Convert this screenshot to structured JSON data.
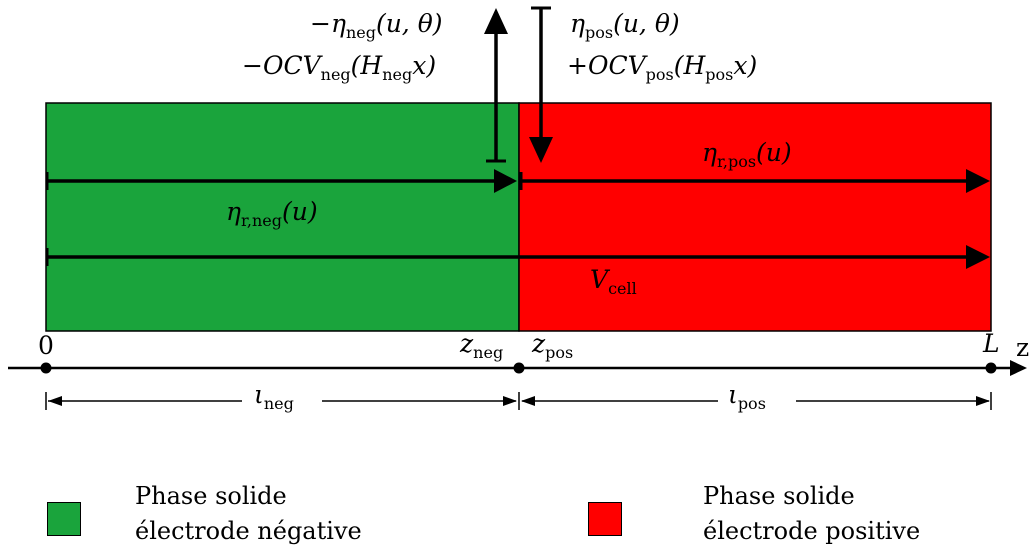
{
  "colors": {
    "negative": "#1aa43c",
    "positive": "#ff0000",
    "stroke": "#000000"
  },
  "labels": {
    "eta_neg_line1": "−η",
    "eta_neg_line1_sub": "neg",
    "eta_neg_line1_args": "(u, θ)",
    "ocv_neg": "−OCV",
    "ocv_neg_sub": "neg",
    "ocv_neg_args": "(H",
    "ocv_neg_args_sub": "neg",
    "ocv_neg_args_end": "x)",
    "eta_pos_line1": "η",
    "eta_pos_line1_sub": "pos",
    "eta_pos_line1_args": "(u, θ)",
    "ocv_pos": "+OCV",
    "ocv_pos_sub": "pos",
    "ocv_pos_args": "(H",
    "ocv_pos_args_sub": "pos",
    "ocv_pos_args_end": "x)",
    "eta_r_pos": "η",
    "eta_r_pos_sub": "r,pos",
    "eta_r_pos_args": "(u)",
    "eta_r_neg": "η",
    "eta_r_neg_sub": "r,neg",
    "eta_r_neg_args": "(u)",
    "v_cell": "V",
    "v_cell_sub": "cell",
    "axis_zero": "0",
    "z_neg": "z",
    "z_neg_sub": "neg",
    "z_pos": "z",
    "z_pos_sub": "pos",
    "axis_L": "L",
    "axis_z": "z",
    "l_neg": "ι",
    "l_neg_sub": "neg",
    "l_pos": "ι",
    "l_pos_sub": "pos"
  },
  "legend": {
    "negative_line1": "Phase solide",
    "negative_line2": "électrode négative",
    "positive_line1": "Phase solide",
    "positive_line2": "électrode positive"
  }
}
